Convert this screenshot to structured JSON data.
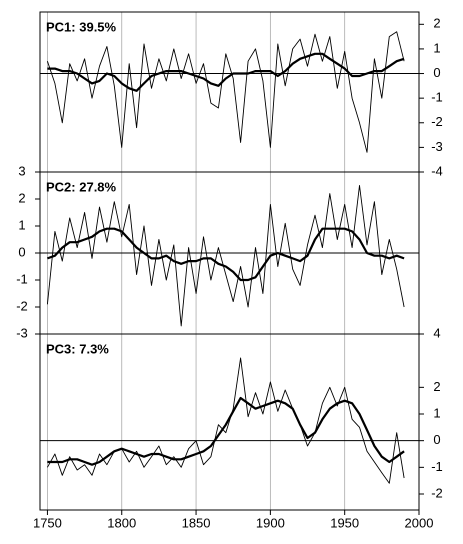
{
  "chart_data": [
    {
      "type": "line",
      "title": "PC1: 39.5%",
      "yaxis_side": "right",
      "xlim": [
        1745,
        2000
      ],
      "ylim": [
        -4,
        2.5
      ],
      "yticks": [
        -4,
        -3,
        -2,
        -1,
        0,
        1,
        2
      ],
      "zero_line": true,
      "x": [
        1750,
        1755,
        1760,
        1765,
        1770,
        1775,
        1780,
        1785,
        1790,
        1795,
        1800,
        1805,
        1810,
        1815,
        1820,
        1825,
        1830,
        1835,
        1840,
        1845,
        1850,
        1855,
        1860,
        1865,
        1870,
        1875,
        1880,
        1885,
        1890,
        1895,
        1900,
        1905,
        1910,
        1915,
        1920,
        1925,
        1930,
        1935,
        1940,
        1945,
        1950,
        1955,
        1960,
        1965,
        1970,
        1975,
        1980,
        1985,
        1990
      ],
      "series": [
        {
          "color": "#000000",
          "values": [
            0.5,
            -0.4,
            -2.0,
            0.4,
            -0.3,
            0.6,
            -1.0,
            0.3,
            1.1,
            -0.5,
            -3.0,
            0.4,
            -2.2,
            1.2,
            -0.6,
            0.6,
            -0.3,
            1.0,
            -0.2,
            0.8,
            -0.4,
            0.4,
            -1.2,
            -1.4,
            0.8,
            -0.2,
            -2.8,
            0.5,
            1.0,
            -0.3,
            -3.0,
            1.2,
            -0.5,
            1.0,
            1.4,
            0.3,
            1.6,
            0.5,
            1.5,
            -0.6,
            0.9,
            -1.0,
            -2.0,
            -3.2,
            0.6,
            -1.0,
            1.5,
            1.7,
            0.5
          ]
        },
        {
          "color": "#000000",
          "values": [
            0.2,
            0.2,
            0.1,
            0.1,
            0.0,
            -0.2,
            -0.4,
            -0.3,
            0.0,
            -0.1,
            -0.4,
            -0.6,
            -0.7,
            -0.4,
            -0.1,
            0.0,
            0.1,
            0.1,
            0.1,
            0.0,
            -0.1,
            -0.2,
            -0.4,
            -0.5,
            -0.2,
            0.0,
            0.0,
            0.0,
            0.1,
            0.1,
            0.1,
            -0.1,
            0.1,
            0.4,
            0.6,
            0.7,
            0.8,
            0.8,
            0.6,
            0.4,
            0.2,
            -0.1,
            -0.1,
            0.0,
            0.1,
            0.1,
            0.3,
            0.5,
            0.6
          ]
        }
      ]
    },
    {
      "type": "line",
      "title": "PC2: 27.8%",
      "yaxis_side": "left",
      "xlim": [
        1745,
        2000
      ],
      "ylim": [
        -3,
        3
      ],
      "yticks": [
        -3,
        -2,
        -1,
        0,
        1,
        2,
        3
      ],
      "zero_line": true,
      "x": [
        1750,
        1755,
        1760,
        1765,
        1770,
        1775,
        1780,
        1785,
        1790,
        1795,
        1800,
        1805,
        1810,
        1815,
        1820,
        1825,
        1830,
        1835,
        1840,
        1845,
        1850,
        1855,
        1860,
        1865,
        1870,
        1875,
        1880,
        1885,
        1890,
        1895,
        1900,
        1905,
        1910,
        1915,
        1920,
        1925,
        1930,
        1935,
        1940,
        1945,
        1950,
        1955,
        1960,
        1965,
        1970,
        1975,
        1980,
        1985,
        1990
      ],
      "series": [
        {
          "color": "#000000",
          "values": [
            -1.9,
            0.8,
            -0.3,
            1.3,
            0.2,
            1.5,
            -0.2,
            1.7,
            0.4,
            1.9,
            0.6,
            1.8,
            -0.8,
            1.0,
            -1.2,
            0.5,
            -1.0,
            0.3,
            -2.7,
            0.2,
            -1.5,
            0.6,
            -1.0,
            0.2,
            -0.8,
            -1.8,
            -0.5,
            -2.0,
            0.2,
            -1.5,
            1.8,
            -0.5,
            1.1,
            -0.6,
            -1.2,
            0.3,
            1.4,
            0.2,
            2.2,
            0.5,
            1.8,
            0.2,
            2.5,
            0.3,
            1.9,
            -0.8,
            0.5,
            -0.6,
            -2.0
          ]
        },
        {
          "color": "#000000",
          "values": [
            -0.2,
            -0.1,
            0.2,
            0.4,
            0.4,
            0.5,
            0.6,
            0.8,
            0.9,
            0.9,
            0.8,
            0.5,
            0.2,
            0.0,
            -0.2,
            -0.2,
            -0.1,
            -0.3,
            -0.4,
            -0.3,
            -0.3,
            -0.2,
            -0.2,
            -0.4,
            -0.5,
            -0.7,
            -1.0,
            -1.0,
            -0.9,
            -0.5,
            -0.1,
            0.0,
            -0.1,
            -0.2,
            -0.3,
            -0.1,
            0.5,
            0.9,
            0.9,
            0.9,
            0.9,
            0.8,
            0.5,
            0.0,
            -0.1,
            -0.1,
            -0.2,
            -0.1,
            -0.2
          ]
        }
      ]
    },
    {
      "type": "line",
      "title": "PC3: 7.3%",
      "yaxis_side": "right",
      "xlim": [
        1745,
        2000
      ],
      "ylim": [
        -2.6,
        4
      ],
      "yticks": [
        -2,
        -1,
        0,
        1,
        2,
        4
      ],
      "zero_line": true,
      "xticks": [
        1750,
        1800,
        1850,
        1900,
        1950,
        2000
      ],
      "x": [
        1750,
        1755,
        1760,
        1765,
        1770,
        1775,
        1780,
        1785,
        1790,
        1795,
        1800,
        1805,
        1810,
        1815,
        1820,
        1825,
        1830,
        1835,
        1840,
        1845,
        1850,
        1855,
        1860,
        1865,
        1870,
        1875,
        1880,
        1885,
        1890,
        1895,
        1900,
        1905,
        1910,
        1915,
        1920,
        1925,
        1930,
        1935,
        1940,
        1945,
        1950,
        1955,
        1960,
        1965,
        1970,
        1975,
        1980,
        1985,
        1990
      ],
      "series": [
        {
          "color": "#000000",
          "values": [
            -1.0,
            -0.5,
            -1.3,
            -0.6,
            -1.1,
            -0.9,
            -1.3,
            -0.5,
            -0.9,
            -0.4,
            -0.3,
            -0.8,
            -0.4,
            -1.0,
            -0.6,
            -0.2,
            -0.9,
            -0.6,
            -1.0,
            -0.3,
            0.0,
            -0.9,
            -0.6,
            0.6,
            0.3,
            1.2,
            3.1,
            0.9,
            1.8,
            1.0,
            2.2,
            1.1,
            1.9,
            1.2,
            0.6,
            -0.2,
            0.3,
            1.4,
            2.0,
            1.3,
            2.0,
            0.8,
            0.5,
            -0.4,
            -0.8,
            -1.2,
            -1.6,
            0.3,
            -1.4
          ]
        },
        {
          "color": "#000000",
          "values": [
            -0.8,
            -0.8,
            -0.8,
            -0.7,
            -0.7,
            -0.8,
            -0.9,
            -0.8,
            -0.6,
            -0.4,
            -0.3,
            -0.4,
            -0.5,
            -0.6,
            -0.5,
            -0.5,
            -0.6,
            -0.7,
            -0.7,
            -0.6,
            -0.5,
            -0.4,
            -0.2,
            0.2,
            0.6,
            1.1,
            1.6,
            1.4,
            1.2,
            1.3,
            1.4,
            1.5,
            1.4,
            1.2,
            0.6,
            0.1,
            0.3,
            0.8,
            1.2,
            1.4,
            1.5,
            1.4,
            1.0,
            0.4,
            -0.2,
            -0.6,
            -0.8,
            -0.6,
            -0.4
          ]
        }
      ]
    }
  ]
}
